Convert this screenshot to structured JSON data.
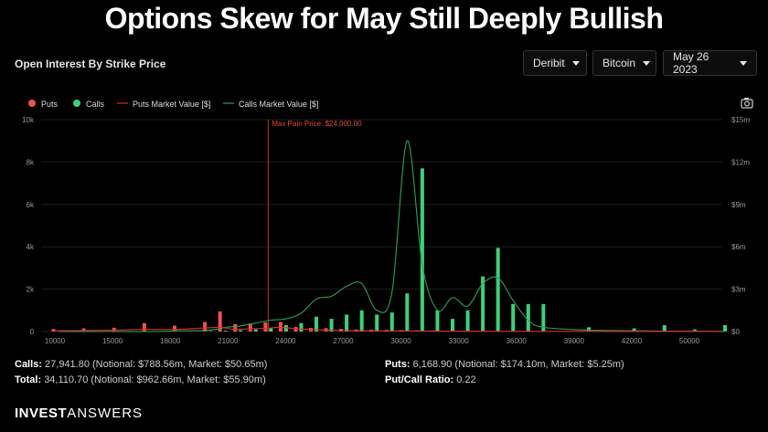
{
  "headline": "Options Skew for May Still Deeply Bullish",
  "subtitle": "Open Interest By Strike Price",
  "dropdowns": {
    "exchange": "Deribit",
    "asset": "Bitcoin",
    "expiry": "May 26 2023"
  },
  "icons": {
    "camera": "camera-icon",
    "caret": "chevron-down-icon"
  },
  "stats": {
    "calls_label": "Calls:",
    "calls_value": "27,941.80 (Notional: $788.56m, Market: $50.65m)",
    "total_label": "Total:",
    "total_value": "34,110.70 (Notional: $962.66m, Market: $55.90m)",
    "puts_label": "Puts:",
    "puts_value": "6,168.90 (Notional: $174.10m, Market: $5.25m)",
    "ratio_label": "Put/Call Ratio:",
    "ratio_value": "0.22"
  },
  "brand": {
    "part1": "INVEST",
    "part2": "ANSWERS"
  },
  "chart_data": {
    "type": "bar",
    "title": "",
    "legend": [
      "Puts",
      "Calls",
      "Puts Market Value [$]",
      "Calls Market Value [$]"
    ],
    "legend_position": "top-left",
    "colors": {
      "puts": "#f0504b",
      "calls": "#3ecf7a",
      "puts_line": "#d9302c",
      "calls_line": "#2f9e5a",
      "pain": "#c0392b"
    },
    "xlim": [
      9000,
      54000
    ],
    "x_ticks": [
      "10000",
      "15000",
      "18000",
      "21000",
      "24000",
      "27000",
      "30000",
      "33000",
      "36000",
      "39000",
      "42000",
      "50000"
    ],
    "ylim": [
      0,
      10000
    ],
    "y_ticks": [
      "0",
      "2k",
      "4k",
      "6k",
      "8k",
      "10k"
    ],
    "y2_ticks": [
      "$0",
      "$3m",
      "$6m",
      "$9m",
      "$12m",
      "$15m"
    ],
    "grid": true,
    "max_pain_label": "Max Pain Price: $24,000.00",
    "max_pain": 24000,
    "strikes": [
      10000,
      12000,
      14000,
      16000,
      18000,
      20000,
      21000,
      22000,
      23000,
      24000,
      25000,
      26000,
      27000,
      28000,
      29000,
      30000,
      31000,
      32000,
      33000,
      34000,
      35000,
      36000,
      37000,
      38000,
      39000,
      40000,
      41000,
      42000,
      45000,
      48000,
      50000,
      52000,
      54000
    ],
    "puts": [
      120,
      150,
      180,
      400,
      280,
      450,
      950,
      350,
      380,
      430,
      450,
      220,
      170,
      160,
      130,
      100,
      90,
      80,
      70,
      60,
      50,
      40,
      30,
      30,
      20,
      20,
      10,
      10,
      10,
      10,
      10,
      10,
      10
    ],
    "calls": [
      0,
      0,
      0,
      0,
      0,
      20,
      40,
      60,
      100,
      150,
      300,
      400,
      700,
      600,
      800,
      1000,
      800,
      900,
      1800,
      7700,
      1000,
      600,
      1000,
      2600,
      3950,
      1300,
      1300,
      1300,
      200,
      150,
      300,
      100,
      300
    ],
    "calls_market_value_m": [
      0,
      0,
      0,
      0,
      0.05,
      0.1,
      0.3,
      0.4,
      0.6,
      0.8,
      0.9,
      1.3,
      2.3,
      2.5,
      3.2,
      3.4,
      1.5,
      2.8,
      13.5,
      4.7,
      1.5,
      2.4,
      1.8,
      3.4,
      3.8,
      2.2,
      0.8,
      0.3,
      0.1,
      0.05,
      0.03,
      0.02,
      0.01
    ],
    "puts_market_value_m": [
      0.05,
      0.07,
      0.09,
      0.15,
      0.15,
      0.25,
      0.3,
      0.15,
      0.2,
      0.22,
      0.3,
      0.2,
      0.15,
      0.1,
      0.08,
      0.06,
      0.05,
      0.05,
      0.04,
      0.04,
      0.03,
      0.03,
      0.02,
      0.02,
      0.02,
      0.01,
      0.01,
      0.01,
      0.01,
      0.01,
      0.01,
      0.01,
      0.01
    ]
  }
}
